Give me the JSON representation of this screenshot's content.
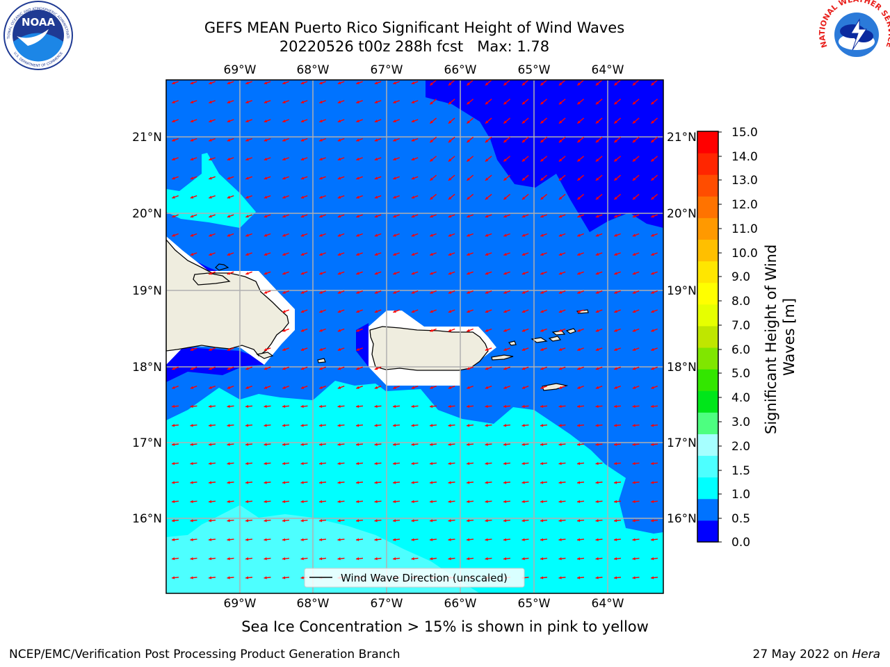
{
  "title": {
    "line1": "GEFS MEAN Puerto Rico Significant Height of Wind Waves",
    "line2": "20220526 t00z 288h fcst   Max: 1.78"
  },
  "logos": {
    "noaa_text": "NOAA",
    "noaa_ring_top": "NATIONAL OCEANIC AND ATMOSPHERIC ADMINISTRATION",
    "noaa_ring_bottom": "U.S. DEPARTMENT OF COMMERCE",
    "nws_ring": "NATIONAL WEATHER SERVICE"
  },
  "map": {
    "lon_labels": [
      "69°W",
      "68°W",
      "67°W",
      "66°W",
      "65°W",
      "64°W"
    ],
    "lat_labels": [
      "21°N",
      "20°N",
      "19°N",
      "18°N",
      "17°N",
      "16°N"
    ],
    "lon_range": [
      -69.99,
      -63.25
    ],
    "lat_range": [
      15.02,
      21.76
    ],
    "colors": {
      "level_0_0.5": "#0000ff",
      "level_0.5_1.0": "#0073ff",
      "level_1.0_1.5": "#00ffff",
      "level_1.5_2.0": "#4dffff",
      "land": "#efeddf",
      "arrows": "#ff0000",
      "grid": "#b0b0b0"
    },
    "legend_label": "Wind Wave Direction (unscaled)"
  },
  "colorbar": {
    "label": "Significant Height of Wind Waves [m]",
    "ticks": [
      "15.0",
      "14.0",
      "13.0",
      "12.0",
      "11.0",
      "10.0",
      "9.0",
      "8.0",
      "7.0",
      "6.0",
      "5.0",
      "4.0",
      "3.0",
      "2.0",
      "1.5",
      "1.0",
      "0.5",
      "0.0"
    ],
    "colors_bottom_to_top": [
      "#0000ff",
      "#0073ff",
      "#00ffff",
      "#4dffff",
      "#a6ffff",
      "#4dff80",
      "#00e61a",
      "#33e600",
      "#80e600",
      "#bfe600",
      "#e6ff00",
      "#ffff00",
      "#ffe600",
      "#ffbf00",
      "#ff9900",
      "#ff7300",
      "#ff4d00",
      "#ff2600",
      "#ff0000"
    ]
  },
  "sea_ice_note": "Sea Ice Concentration > 15% is shown in pink to yellow",
  "footer": {
    "left": "NCEP/EMC/Verification Post Processing Product Generation Branch",
    "right_prefix": "27 May 2022 on ",
    "right_host": "Hera"
  }
}
